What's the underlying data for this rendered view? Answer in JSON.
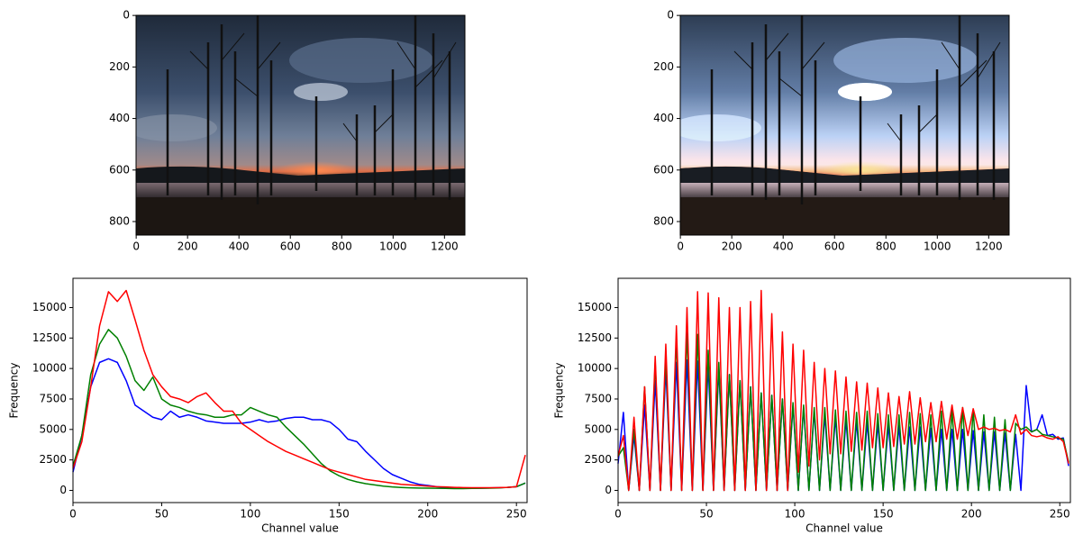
{
  "chart_data": [
    {
      "type": "image",
      "xlim": [
        -0.5,
        1279.5
      ],
      "ylim": [
        852.5,
        -0.5
      ],
      "xticks": [
        0,
        200,
        400,
        600,
        800,
        1000,
        1200
      ],
      "yticks": [
        0,
        200,
        400,
        600,
        800
      ]
    },
    {
      "type": "image",
      "xlim": [
        -0.5,
        1279.5
      ],
      "ylim": [
        852.5,
        -0.5
      ],
      "xticks": [
        0,
        200,
        400,
        600,
        800,
        1000,
        1200
      ],
      "yticks": [
        0,
        200,
        400,
        600,
        800
      ]
    },
    {
      "type": "line",
      "xlabel": "Channel value",
      "ylabel": "Frequency",
      "xlim": [
        0,
        256
      ],
      "ylim": [
        -1000,
        17400
      ],
      "xticks": [
        0,
        50,
        100,
        150,
        200,
        250
      ],
      "yticks": [
        0,
        2500,
        5000,
        7500,
        10000,
        12500,
        15000
      ],
      "x": [
        0,
        5,
        10,
        15,
        20,
        25,
        30,
        35,
        40,
        45,
        50,
        55,
        60,
        65,
        70,
        75,
        80,
        85,
        90,
        95,
        100,
        105,
        110,
        115,
        120,
        125,
        130,
        135,
        140,
        145,
        150,
        155,
        160,
        165,
        170,
        175,
        180,
        185,
        190,
        195,
        200,
        205,
        210,
        215,
        220,
        225,
        230,
        235,
        240,
        245,
        250,
        255
      ],
      "series": [
        {
          "color": "#0000ff",
          "values": [
            1500,
            4500,
            8500,
            10500,
            10800,
            10500,
            9000,
            7000,
            6500,
            6000,
            5800,
            6500,
            6000,
            6200,
            6000,
            5700,
            5600,
            5500,
            5500,
            5500,
            5600,
            5800,
            5600,
            5700,
            5900,
            6000,
            6000,
            5800,
            5800,
            5600,
            5000,
            4200,
            4000,
            3200,
            2500,
            1800,
            1300,
            1000,
            700,
            500,
            400,
            300,
            250,
            220,
            200,
            180,
            180,
            200,
            220,
            250,
            300,
            600
          ]
        },
        {
          "color": "#008000",
          "values": [
            2000,
            4500,
            9500,
            12000,
            13200,
            12500,
            11000,
            9000,
            8200,
            9300,
            7500,
            7000,
            6800,
            6500,
            6300,
            6200,
            6000,
            6000,
            6200,
            6200,
            6800,
            6500,
            6200,
            6000,
            5200,
            4500,
            3800,
            3000,
            2200,
            1600,
            1200,
            900,
            700,
            550,
            450,
            350,
            280,
            240,
            210,
            190,
            180,
            170,
            160,
            150,
            150,
            160,
            170,
            180,
            200,
            250,
            300,
            600
          ]
        },
        {
          "color": "#ff0000",
          "values": [
            1800,
            4000,
            8500,
            13500,
            16300,
            15500,
            16400,
            14000,
            11500,
            9500,
            8500,
            7700,
            7500,
            7200,
            7700,
            8000,
            7200,
            6500,
            6500,
            5500,
            5000,
            4500,
            4000,
            3600,
            3200,
            2900,
            2600,
            2300,
            2000,
            1700,
            1500,
            1300,
            1100,
            900,
            800,
            700,
            600,
            500,
            450,
            400,
            350,
            300,
            280,
            250,
            230,
            220,
            220,
            220,
            230,
            250,
            300,
            2900
          ]
        }
      ]
    },
    {
      "type": "line",
      "xlabel": "Channel value",
      "ylabel": "Frequency",
      "xlim": [
        0,
        256
      ],
      "ylim": [
        -1000,
        17400
      ],
      "xticks": [
        0,
        50,
        100,
        150,
        200,
        250
      ],
      "yticks": [
        0,
        2500,
        5000,
        7500,
        10000,
        12500,
        15000
      ],
      "x": [
        0,
        3,
        6,
        9,
        12,
        15,
        18,
        21,
        24,
        27,
        30,
        33,
        36,
        39,
        42,
        45,
        48,
        51,
        54,
        57,
        60,
        63,
        66,
        69,
        72,
        75,
        78,
        81,
        84,
        87,
        90,
        93,
        96,
        99,
        102,
        105,
        108,
        111,
        114,
        117,
        120,
        123,
        126,
        129,
        132,
        135,
        138,
        141,
        144,
        147,
        150,
        153,
        156,
        159,
        162,
        165,
        168,
        171,
        174,
        177,
        180,
        183,
        186,
        189,
        192,
        195,
        198,
        201,
        204,
        207,
        210,
        213,
        216,
        219,
        222,
        225,
        228,
        231,
        234,
        237,
        240,
        243,
        246,
        249,
        252,
        255
      ],
      "series": [
        {
          "color": "#0000ff",
          "values": [
            2200,
            6400,
            0,
            4500,
            0,
            7000,
            0,
            9000,
            0,
            10000,
            0,
            10500,
            0,
            10700,
            0,
            10600,
            0,
            10300,
            0,
            10000,
            0,
            9500,
            0,
            9000,
            0,
            8500,
            0,
            8000,
            0,
            7800,
            0,
            7500,
            0,
            7000,
            0,
            6800,
            0,
            6500,
            0,
            6200,
            0,
            6000,
            0,
            5800,
            0,
            5700,
            0,
            5600,
            0,
            5500,
            0,
            5400,
            0,
            5300,
            0,
            5200,
            0,
            5200,
            0,
            5100,
            0,
            5000,
            0,
            5000,
            0,
            5000,
            0,
            4900,
            0,
            4800,
            0,
            4800,
            0,
            4700,
            0,
            4600,
            0,
            8600,
            4800,
            5000,
            6200,
            4500,
            4600,
            4200,
            4300,
            2000
          ]
        },
        {
          "color": "#008000",
          "values": [
            2800,
            3500,
            0,
            5000,
            0,
            8500,
            0,
            10500,
            0,
            11000,
            0,
            12500,
            0,
            13000,
            0,
            12800,
            0,
            11500,
            0,
            10500,
            0,
            9500,
            0,
            9000,
            0,
            8500,
            0,
            8000,
            0,
            7800,
            0,
            7500,
            0,
            7200,
            0,
            7000,
            0,
            6800,
            0,
            6800,
            0,
            6600,
            0,
            6500,
            0,
            6400,
            0,
            6500,
            0,
            6300,
            0,
            6200,
            0,
            6200,
            0,
            6400,
            0,
            6300,
            0,
            6200,
            0,
            6500,
            0,
            6600,
            0,
            6800,
            0,
            6600,
            0,
            6200,
            0,
            6000,
            0,
            5800,
            0,
            5500,
            5000,
            5200,
            4800,
            5000,
            4600,
            4500,
            4400,
            4300,
            4200,
            2300
          ]
        },
        {
          "color": "#ff0000",
          "values": [
            2800,
            4500,
            0,
            6000,
            0,
            8500,
            0,
            11000,
            0,
            12000,
            0,
            13500,
            0,
            15000,
            0,
            16300,
            0,
            16200,
            0,
            15800,
            0,
            15000,
            0,
            15000,
            0,
            15500,
            0,
            16400,
            0,
            14500,
            0,
            13000,
            0,
            12000,
            1500,
            11500,
            2000,
            10500,
            2500,
            10000,
            3000,
            9800,
            3000,
            9300,
            3200,
            8900,
            3300,
            8800,
            3500,
            8400,
            3500,
            8000,
            3600,
            7700,
            3800,
            8100,
            3800,
            7600,
            4000,
            7200,
            4000,
            7300,
            4200,
            7000,
            4200,
            6800,
            4500,
            6700,
            5000,
            5200,
            5000,
            5100,
            4900,
            5000,
            4800,
            6200,
            4600,
            5000,
            4500,
            4400,
            4500,
            4300,
            4200,
            4400,
            4000,
            2200
          ]
        }
      ]
    }
  ]
}
